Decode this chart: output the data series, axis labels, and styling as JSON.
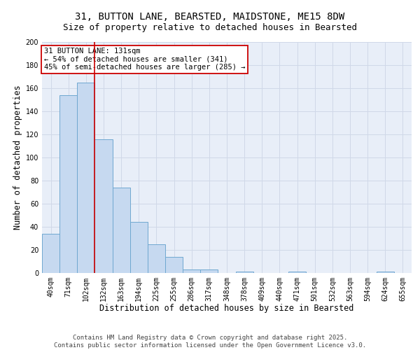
{
  "title_line1": "31, BUTTON LANE, BEARSTED, MAIDSTONE, ME15 8DW",
  "title_line2": "Size of property relative to detached houses in Bearsted",
  "xlabel": "Distribution of detached houses by size in Bearsted",
  "ylabel": "Number of detached properties",
  "categories": [
    "40sqm",
    "71sqm",
    "102sqm",
    "132sqm",
    "163sqm",
    "194sqm",
    "225sqm",
    "255sqm",
    "286sqm",
    "317sqm",
    "348sqm",
    "378sqm",
    "409sqm",
    "440sqm",
    "471sqm",
    "501sqm",
    "532sqm",
    "563sqm",
    "594sqm",
    "624sqm",
    "655sqm"
  ],
  "values": [
    34,
    154,
    165,
    116,
    74,
    44,
    25,
    14,
    3,
    3,
    0,
    1,
    0,
    0,
    1,
    0,
    0,
    0,
    0,
    1,
    0
  ],
  "bar_color": "#c6d9f0",
  "bar_edge_color": "#6fa8d0",
  "vline_x": 2.5,
  "vline_color": "#cc0000",
  "annotation_text": "31 BUTTON LANE: 131sqm\n← 54% of detached houses are smaller (341)\n45% of semi-detached houses are larger (285) →",
  "annotation_box_color": "#ffffff",
  "annotation_box_edge": "#cc0000",
  "ylim": [
    0,
    200
  ],
  "yticks": [
    0,
    20,
    40,
    60,
    80,
    100,
    120,
    140,
    160,
    180,
    200
  ],
  "grid_color": "#d0d8e8",
  "background_color": "#e8eef8",
  "footer_line1": "Contains HM Land Registry data © Crown copyright and database right 2025.",
  "footer_line2": "Contains public sector information licensed under the Open Government Licence v3.0.",
  "title_fontsize": 10,
  "subtitle_fontsize": 9,
  "axis_label_fontsize": 8.5,
  "tick_fontsize": 7,
  "annot_fontsize": 7.5,
  "footer_fontsize": 6.5
}
